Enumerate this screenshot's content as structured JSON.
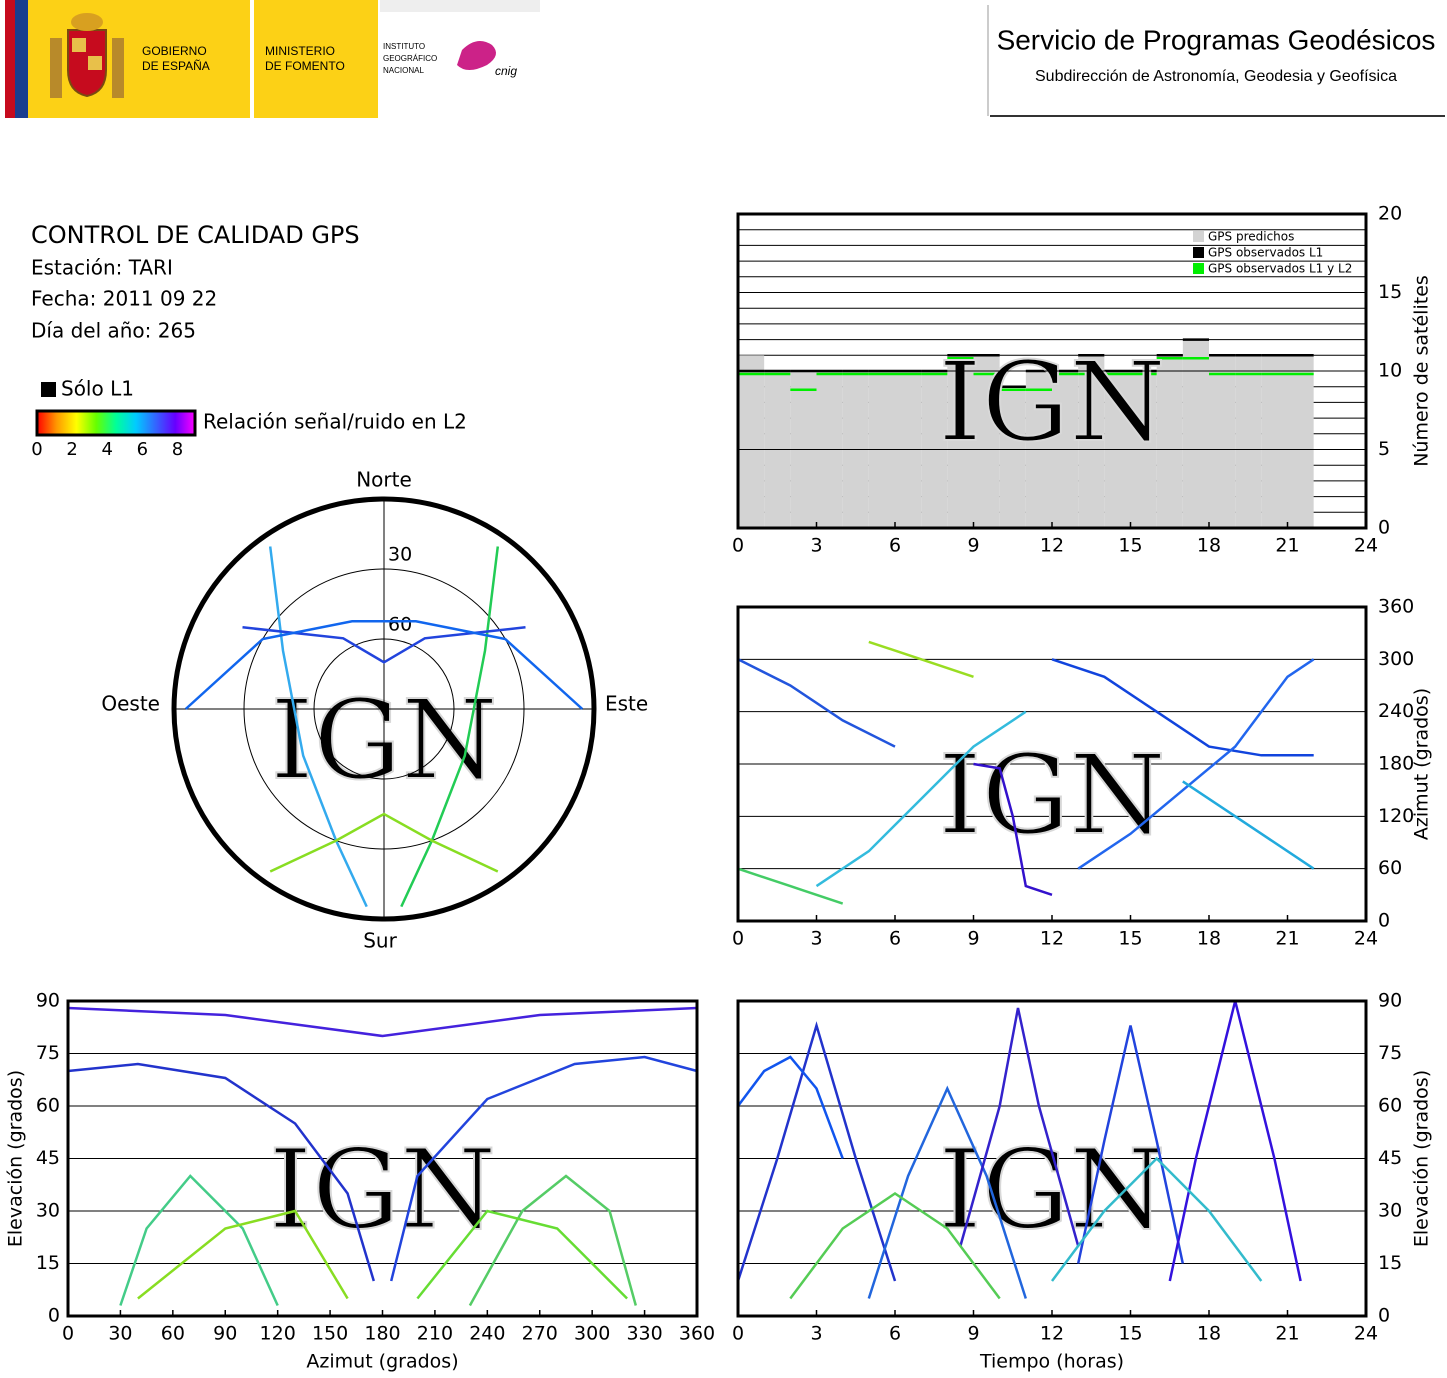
{
  "header": {
    "gov_lines": [
      "GOBIERNO",
      "DE ESPAÑA"
    ],
    "ministry_lines": [
      "MINISTERIO",
      "DE FOMENTO"
    ],
    "ign_lines": [
      "INSTITUTO",
      "GEOGRÁFICO",
      "NACIONAL"
    ],
    "cnig": "cnig",
    "title": "Servicio de Programas Geodésicos",
    "subtitle": "Subdirección de Astronomía, Geodesia y Geofísica"
  },
  "info": {
    "title": "CONTROL DE CALIDAD GPS",
    "station": "Estación: TARI",
    "date": "Fecha: 2011 09 22",
    "doy": "Día del año: 265"
  },
  "legend": {
    "l1_only": "Sólo L1",
    "l1_color": "#000000",
    "colorbar_label": "Relación señal/ruido en L2",
    "colorbar_range": [
      0,
      9
    ],
    "colorbar_ticks": [
      0,
      2,
      4,
      6,
      8
    ],
    "colorbar_colors": [
      "#ff0000",
      "#ff9900",
      "#ffff00",
      "#66ff00",
      "#00ff99",
      "#00ccff",
      "#3366ff",
      "#6600ff",
      "#ff00ff"
    ]
  },
  "watermark": "IGN",
  "chart_data": [
    {
      "type": "polar",
      "directions": {
        "north": "Norte",
        "south": "Sur",
        "east": "Este",
        "west": "Oeste"
      },
      "rings": [
        30,
        60
      ],
      "series": [
        {
          "color": "#22cc55",
          "x": [
            35,
            60,
            120,
            160,
            175
          ],
          "values": [
            5,
            40,
            50,
            30,
            5
          ]
        },
        {
          "color": "#33aaee",
          "x": [
            325,
            300,
            240,
            200,
            185
          ],
          "values": [
            5,
            40,
            50,
            30,
            5
          ]
        },
        {
          "color": "#2244dd",
          "x": [
            300,
            330,
            0,
            30,
            60
          ],
          "values": [
            20,
            55,
            70,
            55,
            20
          ]
        },
        {
          "color": "#88dd22",
          "x": [
            145,
            160,
            180,
            200,
            215
          ],
          "values": [
            5,
            30,
            45,
            30,
            5
          ]
        },
        {
          "color": "#1166ee",
          "x": [
            90,
            60,
            20,
            340,
            300,
            270
          ],
          "values": [
            5,
            30,
            50,
            50,
            30,
            5
          ]
        }
      ]
    },
    {
      "type": "step",
      "ylabel": "Número de satélites",
      "xlim": [
        0,
        24
      ],
      "xticks": [
        0,
        3,
        6,
        9,
        12,
        15,
        18,
        21,
        24
      ],
      "ylim": [
        0,
        20
      ],
      "yticks": [
        0,
        5,
        10,
        15,
        20
      ],
      "grid_step": 1,
      "y_axis_side": "right",
      "x": [
        0,
        1,
        2,
        3,
        4,
        5,
        6,
        7,
        8,
        9,
        10,
        11,
        12,
        13,
        14,
        15,
        16,
        17,
        18,
        19,
        20,
        21
      ],
      "series": [
        {
          "name": "GPS predichos",
          "color": "#d3d3d3",
          "values": [
            11,
            10,
            10,
            10,
            10,
            10,
            10,
            10,
            11,
            11,
            9,
            10,
            10,
            11,
            10,
            10,
            11,
            12,
            11,
            11,
            11,
            11
          ]
        },
        {
          "name": "GPS observados L1",
          "color": "#000000",
          "values": [
            10,
            10,
            10,
            10,
            10,
            10,
            10,
            10,
            11,
            11,
            9,
            10,
            10,
            11,
            10,
            10,
            11,
            12,
            11,
            11,
            11,
            11
          ]
        },
        {
          "name": "GPS observados L1 y L2",
          "color": "#00ee00",
          "values": [
            10,
            10,
            9,
            10,
            10,
            10,
            10,
            10,
            11,
            10,
            9,
            9,
            10,
            10,
            10,
            10,
            11,
            11,
            10,
            10,
            10,
            10
          ]
        }
      ]
    },
    {
      "type": "line",
      "ylabel": "Azimut (grados)",
      "xlim": [
        0,
        24
      ],
      "xticks": [
        0,
        3,
        6,
        9,
        12,
        15,
        18,
        21,
        24
      ],
      "ylim": [
        0,
        360
      ],
      "yticks": [
        0,
        60,
        120,
        180,
        240,
        300,
        360
      ],
      "y_axis_side": "right",
      "series": [
        {
          "color": "#2255dd",
          "x": [
            0,
            2,
            4,
            6
          ],
          "values": [
            300,
            270,
            230,
            200
          ]
        },
        {
          "color": "#33bbdd",
          "x": [
            3,
            5,
            7,
            9,
            11
          ],
          "values": [
            40,
            80,
            140,
            200,
            240
          ]
        },
        {
          "color": "#3311cc",
          "x": [
            9,
            10,
            10.5,
            11,
            12
          ],
          "values": [
            180,
            175,
            120,
            40,
            30
          ]
        },
        {
          "color": "#1144dd",
          "x": [
            12,
            14,
            16,
            18,
            20,
            22
          ],
          "values": [
            300,
            280,
            240,
            200,
            190,
            190
          ]
        },
        {
          "color": "#44cc66",
          "x": [
            0,
            2,
            4
          ],
          "values": [
            60,
            40,
            20
          ]
        },
        {
          "color": "#2266ee",
          "x": [
            13,
            15,
            17,
            19,
            21,
            22
          ],
          "values": [
            60,
            100,
            150,
            200,
            280,
            300
          ]
        },
        {
          "color": "#99dd22",
          "x": [
            5,
            7,
            9
          ],
          "values": [
            320,
            300,
            280
          ]
        },
        {
          "color": "#22aadd",
          "x": [
            17,
            19,
            21,
            22
          ],
          "values": [
            160,
            120,
            80,
            60
          ]
        }
      ]
    },
    {
      "type": "line",
      "xlabel": "Azimut (grados)",
      "ylabel": "Elevación (grados)",
      "xlim": [
        0,
        360
      ],
      "xticks": [
        0,
        30,
        60,
        90,
        120,
        150,
        180,
        210,
        240,
        270,
        300,
        330,
        360
      ],
      "ylim": [
        0,
        90
      ],
      "yticks": [
        0,
        15,
        30,
        45,
        60,
        75,
        90
      ],
      "y_axis_side": "left",
      "series": [
        {
          "color": "#2233cc",
          "x": [
            0,
            40,
            90,
            130,
            160,
            175
          ],
          "values": [
            70,
            72,
            68,
            55,
            35,
            10
          ]
        },
        {
          "color": "#2244dd",
          "x": [
            185,
            200,
            240,
            290,
            330,
            360
          ],
          "values": [
            10,
            40,
            62,
            72,
            74,
            70
          ]
        },
        {
          "color": "#44cc88",
          "x": [
            30,
            45,
            70,
            100,
            120
          ],
          "values": [
            3,
            25,
            40,
            25,
            3
          ]
        },
        {
          "color": "#55cc66",
          "x": [
            230,
            260,
            285,
            310,
            325
          ],
          "values": [
            3,
            30,
            40,
            30,
            3
          ]
        },
        {
          "color": "#4422dd",
          "x": [
            0,
            90,
            180,
            270,
            360
          ],
          "values": [
            88,
            86,
            80,
            86,
            88
          ]
        },
        {
          "color": "#88dd22",
          "x": [
            40,
            90,
            130,
            160
          ],
          "values": [
            5,
            25,
            30,
            5
          ]
        },
        {
          "color": "#66dd33",
          "x": [
            200,
            240,
            280,
            320
          ],
          "values": [
            5,
            30,
            25,
            5
          ]
        }
      ]
    },
    {
      "type": "line",
      "xlabel": "Tiempo (horas)",
      "ylabel": "Elevación (grados)",
      "xlim": [
        0,
        24
      ],
      "xticks": [
        0,
        3,
        6,
        9,
        12,
        15,
        18,
        21,
        24
      ],
      "ylim": [
        0,
        90
      ],
      "yticks": [
        0,
        15,
        30,
        45,
        60,
        75,
        90
      ],
      "y_axis_side": "right",
      "series": [
        {
          "color": "#2233cc",
          "x": [
            0,
            1.5,
            3,
            4.5,
            6
          ],
          "values": [
            10,
            45,
            83,
            45,
            10
          ]
        },
        {
          "color": "#2266dd",
          "x": [
            5,
            6.5,
            8,
            9.5,
            11
          ],
          "values": [
            5,
            40,
            65,
            40,
            5
          ]
        },
        {
          "color": "#3322cc",
          "x": [
            8.5,
            10,
            10.7,
            11.5,
            13
          ],
          "values": [
            20,
            60,
            88,
            60,
            20
          ]
        },
        {
          "color": "#2244dd",
          "x": [
            13,
            14,
            15,
            16,
            17
          ],
          "values": [
            15,
            50,
            83,
            50,
            15
          ]
        },
        {
          "color": "#3311dd",
          "x": [
            16.5,
            17.5,
            19,
            20.5,
            21.5
          ],
          "values": [
            10,
            45,
            90,
            45,
            10
          ]
        },
        {
          "color": "#1155ee",
          "x": [
            0,
            1,
            2,
            3,
            4
          ],
          "values": [
            60,
            70,
            74,
            65,
            45
          ]
        },
        {
          "color": "#55cc55",
          "x": [
            2,
            4,
            6,
            8,
            10
          ],
          "values": [
            5,
            25,
            35,
            25,
            5
          ]
        },
        {
          "color": "#33bbcc",
          "x": [
            12,
            14,
            16,
            18,
            20
          ],
          "values": [
            10,
            30,
            45,
            30,
            10
          ]
        }
      ]
    }
  ]
}
